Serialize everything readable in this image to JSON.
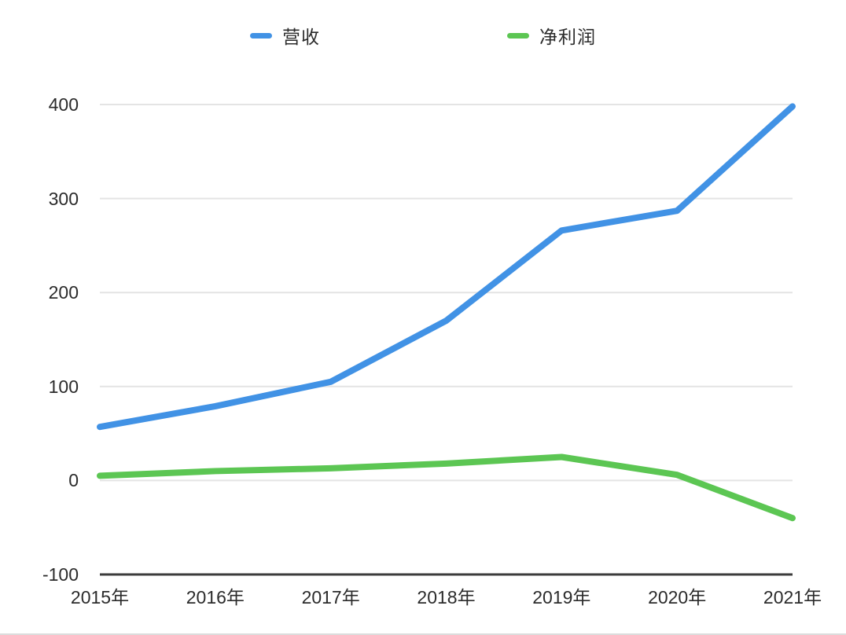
{
  "chart_data": {
    "type": "line",
    "title": "",
    "xlabel": "",
    "ylabel": "",
    "categories": [
      "2015年",
      "2016年",
      "2017年",
      "2018年",
      "2019年",
      "2020年",
      "2021年"
    ],
    "series": [
      {
        "name": "营收",
        "color": "#4192e5",
        "values": [
          57,
          79,
          105,
          170,
          266,
          287,
          398
        ]
      },
      {
        "name": "净利润",
        "color": "#5cc653",
        "values": [
          5,
          10,
          13,
          18,
          25,
          6,
          -40
        ]
      }
    ],
    "ylim": [
      -100,
      400
    ],
    "y_ticks": [
      400,
      300,
      200,
      100,
      0,
      -100
    ],
    "grid": true,
    "legend_position": "top",
    "colors": {
      "gridline": "#e4e4e4",
      "axis_line": "#3c3c3c",
      "tick_label": "#2b2b2b",
      "background": "#ffffff"
    }
  }
}
